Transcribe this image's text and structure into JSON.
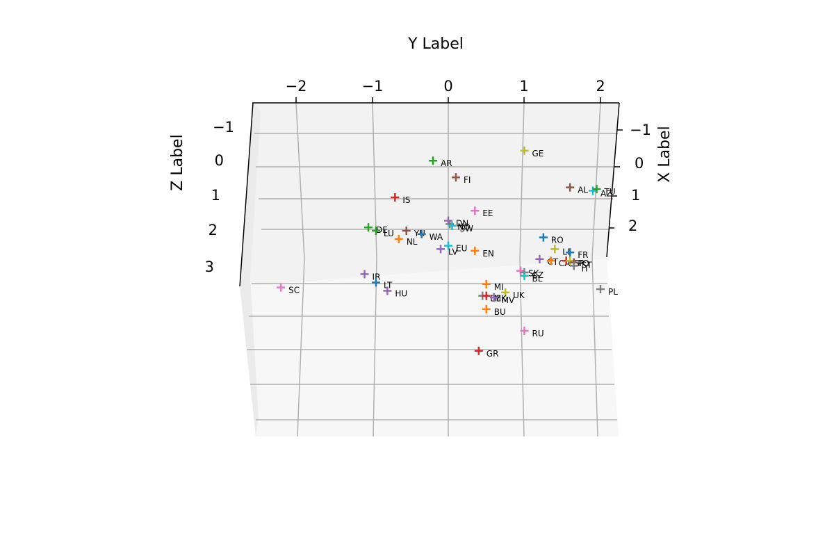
{
  "chart_data": {
    "type": "scatter",
    "projection": "3d",
    "marker": "plus",
    "xlabel": "X Label",
    "ylabel": "Y Label",
    "zlabel": "Z Label",
    "x_ticks": [
      "−1",
      "0",
      "1",
      "2"
    ],
    "y_ticks": [
      "−2",
      "−1",
      "0",
      "1",
      "2"
    ],
    "z_ticks": [
      "−1",
      "0",
      "1",
      "2",
      "3"
    ],
    "grid": true,
    "pane_color": "#f2f2f2",
    "colors": [
      "#1f77b4",
      "#ff7f0e",
      "#2ca02c",
      "#d62728",
      "#9467bd",
      "#8c564b",
      "#e377c2",
      "#7f7f7f",
      "#bcbd22",
      "#17becf"
    ],
    "points": [
      {
        "label": "GE",
        "y": 1.0,
        "z": -0.4,
        "color": "#bcbd22"
      },
      {
        "label": "AR",
        "y": -0.2,
        "z": -0.1,
        "color": "#2ca02c"
      },
      {
        "label": "FI",
        "y": 0.1,
        "z": 0.4,
        "color": "#8c564b"
      },
      {
        "label": "AL",
        "y": 1.6,
        "z": 0.7,
        "color": "#8c564b"
      },
      {
        "label": "AZ",
        "y": 1.9,
        "z": 0.8,
        "color": "#17becf"
      },
      {
        "label": "TU",
        "y": 1.95,
        "z": 0.75,
        "color": "#2ca02c"
      },
      {
        "label": "IS",
        "y": -0.7,
        "z": 1.0,
        "color": "#d62728"
      },
      {
        "label": "EE",
        "y": 0.35,
        "z": 1.4,
        "color": "#e377c2"
      },
      {
        "label": "DN",
        "y": 0.0,
        "z": 1.7,
        "color": "#9467bd"
      },
      {
        "label": "NO",
        "y": 0.02,
        "z": 1.8,
        "color": "#7f7f7f"
      },
      {
        "label": "SW",
        "y": 0.05,
        "z": 1.85,
        "color": "#17becf"
      },
      {
        "label": "DE",
        "y": -1.05,
        "z": 1.9,
        "color": "#2ca02c"
      },
      {
        "label": "LU",
        "y": -0.95,
        "z": 2.0,
        "color": "#2ca02c"
      },
      {
        "label": "YU",
        "y": -0.55,
        "z": 2.0,
        "color": "#8c564b"
      },
      {
        "label": "WA",
        "y": -0.35,
        "z": 2.1,
        "color": "#1f77b4"
      },
      {
        "label": "NL",
        "y": -0.65,
        "z": 2.25,
        "color": "#ff7f0e"
      },
      {
        "label": "RO",
        "y": 1.25,
        "z": 2.2,
        "color": "#1f77b4"
      },
      {
        "label": "EU",
        "y": 0.0,
        "z": 2.45,
        "color": "#17becf"
      },
      {
        "label": "LV",
        "y": -0.1,
        "z": 2.55,
        "color": "#9467bd"
      },
      {
        "label": "EN",
        "y": 0.35,
        "z": 2.6,
        "color": "#ff7f0e"
      },
      {
        "label": "LI",
        "y": 1.4,
        "z": 2.55,
        "color": "#bcbd22"
      },
      {
        "label": "FR",
        "y": 1.6,
        "z": 2.65,
        "color": "#1f77b4"
      },
      {
        "label": "CT",
        "y": 1.2,
        "z": 2.85,
        "color": "#9467bd"
      },
      {
        "label": "CA",
        "y": 1.35,
        "z": 2.9,
        "color": "#ff7f0e"
      },
      {
        "label": "SP",
        "y": 1.55,
        "z": 2.9,
        "color": "#d62728"
      },
      {
        "label": "PO",
        "y": 1.6,
        "z": 2.9,
        "color": "#bcbd22"
      },
      {
        "label": "ST",
        "y": 1.65,
        "z": 2.95,
        "color": "#8c564b"
      },
      {
        "label": "IT",
        "y": 1.65,
        "z": 3.05,
        "color": "#7f7f7f"
      },
      {
        "label": "SK",
        "y": 0.95,
        "z": 3.2,
        "color": "#e377c2"
      },
      {
        "label": "CZ",
        "y": 1.0,
        "z": 3.25,
        "color": "#7f7f7f"
      },
      {
        "label": "BL",
        "y": 1.0,
        "z": 3.35,
        "color": "#17becf"
      },
      {
        "label": "IR",
        "y": -1.1,
        "z": 3.3,
        "color": "#9467bd"
      },
      {
        "label": "LT",
        "y": -0.95,
        "z": 3.55,
        "color": "#1f77b4"
      },
      {
        "label": "HU",
        "y": -0.8,
        "z": 3.8,
        "color": "#9467bd"
      },
      {
        "label": "SC",
        "y": -2.2,
        "z": 3.7,
        "color": "#e377c2"
      },
      {
        "label": "PL",
        "y": 2.0,
        "z": 3.75,
        "color": "#7f7f7f"
      },
      {
        "label": "MI",
        "y": 0.5,
        "z": 3.6,
        "color": "#ff7f0e"
      },
      {
        "label": "UK",
        "y": 0.75,
        "z": 3.85,
        "color": "#bcbd22"
      },
      {
        "label": "BE",
        "y": 0.45,
        "z": 3.95,
        "color": "#7f7f7f"
      },
      {
        "label": "MK",
        "y": 0.5,
        "z": 3.95,
        "color": "#d62728"
      },
      {
        "label": "MV",
        "y": 0.6,
        "z": 4.0,
        "color": "#9467bd"
      },
      {
        "label": "BU",
        "y": 0.5,
        "z": 4.35,
        "color": "#ff7f0e"
      },
      {
        "label": "RU",
        "y": 1.0,
        "z": 5.0,
        "color": "#e377c2"
      },
      {
        "label": "GR",
        "y": 0.4,
        "z": 5.6,
        "color": "#d62728"
      }
    ]
  }
}
